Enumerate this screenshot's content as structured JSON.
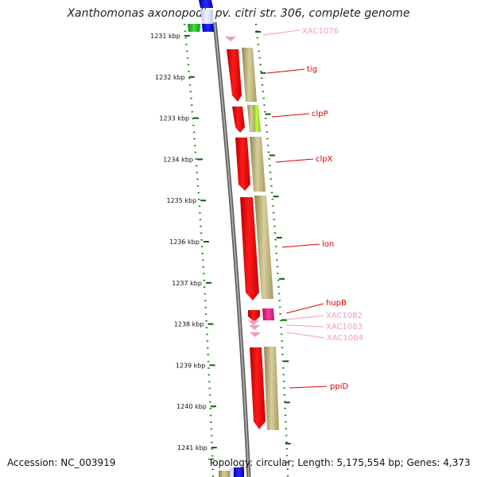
{
  "title": "Xanthomonas axonopodis pv. citri str. 306, complete genome",
  "footer": {
    "accession": "Accession: NC_003919",
    "topology": "Topology: circular; Length: 5,175,554 bp; Genes: 4,373"
  },
  "scale": {
    "unit": "kbp",
    "ticks": [
      1231,
      1232,
      1233,
      1234,
      1235,
      1236,
      1237,
      1238,
      1239,
      1240,
      1241
    ],
    "labels": [
      "1231 kbp",
      "1232 kbp",
      "1233 kbp",
      "1234 kbp",
      "1235 kbp",
      "1236 kbp",
      "1237 kbp",
      "1238 kbp",
      "1239 kbp",
      "1240 kbp",
      "1241 kbp"
    ]
  },
  "genes": [
    {
      "name": "XAC1076",
      "start": 1231.05,
      "end": 1231.12,
      "color": "#f49ac1",
      "labeled_kbp": 1231.0
    },
    {
      "name": "tig",
      "start": 1231.3,
      "end": 1232.65,
      "color": "#ff0000",
      "labeled_kbp": 1231.85
    },
    {
      "name": "clpP",
      "start": 1232.8,
      "end": 1233.4,
      "color": "#ff0000",
      "labeled_kbp": 1232.9
    },
    {
      "name": "clpX",
      "start": 1233.5,
      "end": 1234.8,
      "color": "#ff0000",
      "labeled_kbp": 1234.0
    },
    {
      "name": "lon",
      "start": 1234.9,
      "end": 1237.4,
      "color": "#ff0000",
      "labeled_kbp": 1236.0
    },
    {
      "name": "hupB",
      "start": 1237.6,
      "end": 1237.85,
      "color": "#ff0000",
      "labeled_kbp": 1237.55
    },
    {
      "name": "XAC1082",
      "start": 1237.9,
      "end": 1237.98,
      "color": "#f49ac1",
      "labeled_kbp": 1237.8
    },
    {
      "name": "XAC1083",
      "start": 1238.02,
      "end": 1238.08,
      "color": "#f49ac1",
      "labeled_kbp": 1238.05
    },
    {
      "name": "XAC1084",
      "start": 1238.2,
      "end": 1238.3,
      "color": "#f49ac1",
      "labeled_kbp": 1238.32
    },
    {
      "name": "ppiD",
      "start": 1238.6,
      "end": 1240.6,
      "color": "#ff0000",
      "labeled_kbp": 1239.55
    }
  ],
  "colors": {
    "gene_red": "#ff0000",
    "gene_pink": "#f49ac1",
    "feature_khaki": "#c2b882",
    "feature_lime": "#a8e820",
    "feature_magenta": "#e8207a",
    "feature_blue": "#0000ee",
    "feature_green": "#22bb22",
    "backbone": "#888888",
    "tick_green": "#006600"
  }
}
